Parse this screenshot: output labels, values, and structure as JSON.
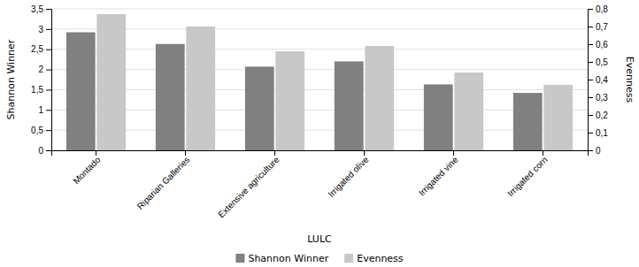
{
  "chart_data": {
    "type": "bar",
    "categories": [
      "Montado",
      "Riparian Galleries",
      "Extensive agriculture",
      "Irrigated olive",
      "Irrigated vine",
      "Irrigated corn"
    ],
    "series": [
      {
        "name": "Shannon Winner",
        "color": "#808080",
        "values": [
          2.92,
          2.63,
          2.07,
          2.2,
          1.63,
          1.42
        ]
      },
      {
        "name": "Evenness",
        "color": "#c8c8c8",
        "values": [
          0.77,
          0.7,
          0.56,
          0.59,
          0.44,
          0.37
        ],
        "axis": "y2"
      }
    ],
    "xlabel": "LULC",
    "ylabel": "Shannon Winner",
    "y2label": "Evenness",
    "ylim": [
      0,
      3.5
    ],
    "yticks": [
      0,
      {
        "value": 0.5,
        "label": "0,5"
      },
      1,
      {
        "value": 1.5,
        "label": "1,5"
      },
      2,
      {
        "value": 2.5,
        "label": "2,5"
      },
      3,
      {
        "value": 3.5,
        "label": "3,5"
      }
    ],
    "y2lim": [
      0,
      0.8
    ],
    "y2ticks": [
      0,
      {
        "value": 0.1,
        "label": "0,1"
      },
      {
        "value": 0.2,
        "label": "0,2"
      },
      {
        "value": 0.3,
        "label": "0,3"
      },
      {
        "value": 0.4,
        "label": "0,4"
      },
      {
        "value": 0.5,
        "label": "0,5"
      },
      {
        "value": 0.6,
        "label": "0,6"
      },
      {
        "value": 0.7,
        "label": "0,7"
      },
      {
        "value": 0.8,
        "label": "0,8"
      }
    ],
    "grid": true,
    "legend": "bottom"
  }
}
